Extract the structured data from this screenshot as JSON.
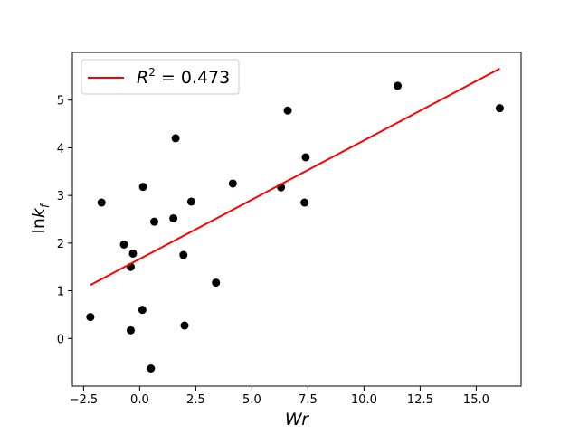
{
  "chart_data": {
    "type": "scatter",
    "xlabel_main": "Wr",
    "ylabel_main": "ln",
    "ylabel_italic": "k",
    "ylabel_sub": "f",
    "xlim": [
      -3.0,
      17.0
    ],
    "ylim": [
      -1.0,
      6.0
    ],
    "xticks": [
      -2.5,
      0.0,
      2.5,
      5.0,
      7.5,
      10.0,
      12.5,
      15.0
    ],
    "xtick_labels": [
      "−2.5",
      "0.0",
      "2.5",
      "5.0",
      "7.5",
      "10.0",
      "12.5",
      "15.0"
    ],
    "yticks": [
      0,
      1,
      2,
      3,
      4,
      5
    ],
    "ytick_labels": [
      "0",
      "1",
      "2",
      "3",
      "4",
      "5"
    ],
    "grid": false,
    "legend_position": "top-left",
    "series": [
      {
        "kind": "points",
        "color": "#000000",
        "points": [
          [
            -2.2,
            0.45
          ],
          [
            -1.7,
            2.85
          ],
          [
            -0.7,
            1.97
          ],
          [
            -0.3,
            1.78
          ],
          [
            -0.4,
            1.5
          ],
          [
            -0.4,
            0.17
          ],
          [
            0.15,
            3.18
          ],
          [
            0.12,
            0.6
          ],
          [
            0.5,
            -0.63
          ],
          [
            0.65,
            2.45
          ],
          [
            1.5,
            2.52
          ],
          [
            1.6,
            4.2
          ],
          [
            1.95,
            1.75
          ],
          [
            2.0,
            0.27
          ],
          [
            2.3,
            2.87
          ],
          [
            3.4,
            1.17
          ],
          [
            4.15,
            3.25
          ],
          [
            6.3,
            3.17
          ],
          [
            6.6,
            4.78
          ],
          [
            7.35,
            2.85
          ],
          [
            7.4,
            3.8
          ],
          [
            11.5,
            5.3
          ],
          [
            16.05,
            4.83
          ]
        ]
      },
      {
        "kind": "line",
        "name_prefix": "R",
        "name_sup": "2",
        "name_suffix": " = 0.473",
        "color": "#ff0000",
        "x": [
          -2.2,
          16.05
        ],
        "y": [
          1.12,
          5.66
        ]
      }
    ]
  }
}
